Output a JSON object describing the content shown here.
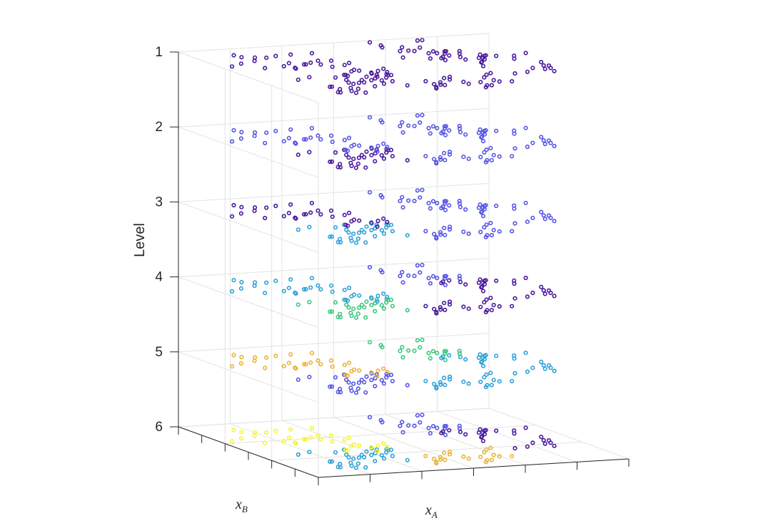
{
  "chart_data": {
    "type": "scatter",
    "view": "3d",
    "title": "",
    "xlabel": "x_A",
    "ylabel": "x_B",
    "zlabel": "Level",
    "xlabel_display": {
      "base": "x",
      "sub": "A"
    },
    "ylabel_display": {
      "base": "x",
      "sub": "B"
    },
    "level_ticks": [
      "1",
      "2",
      "3",
      "4",
      "5",
      "6"
    ],
    "x_tick_labels": [],
    "y_tick_labels": [],
    "grid": true,
    "legend": "none",
    "palette": {
      "c1": "#4a1a9c",
      "c2": "#5656e6",
      "c3": "#2fa2d9",
      "c4": "#3fc77f",
      "c5": "#e9b43a",
      "c6": "#f5f530"
    },
    "groups": [
      {
        "id": "left-pair",
        "x": [
          1.5,
          3.4
        ],
        "y": [
          7.0,
          7.4
        ]
      },
      {
        "id": "upper-left",
        "x": [
          4.4,
          15.0
        ],
        "y": [
          5.3,
          8.9
        ]
      },
      {
        "id": "lower-left",
        "x": [
          4.7,
          16.9
        ],
        "y": [
          1.2,
          4.6
        ]
      },
      {
        "id": "mid-left",
        "x": [
          11.6,
          17.3
        ],
        "y": [
          3.8,
          5.2
        ]
      },
      {
        "id": "mid-right",
        "x": [
          17.1,
          28.3
        ],
        "y": [
          0.9,
          3.3
        ]
      },
      {
        "id": "upper-right",
        "x": [
          23.6,
          31.5
        ],
        "y": [
          5.8,
          9.8
        ]
      },
      {
        "id": "far-right",
        "x": [
          27.7,
          37.9
        ],
        "y": [
          2.6,
          6.7
        ]
      }
    ],
    "levels": [
      {
        "level": 1,
        "colors": {
          "left-pair": "c1",
          "upper-left": "c1",
          "lower-left": "c1",
          "mid-left": "c1",
          "mid-right": "c1",
          "upper-right": "c1",
          "far-right": "c1"
        }
      },
      {
        "level": 2,
        "colors": {
          "left-pair": "c2",
          "upper-left": "c2",
          "lower-left": "c1",
          "mid-left": "c2",
          "mid-right": "c2",
          "upper-right": "c2",
          "far-right": "c2"
        }
      },
      {
        "level": 3,
        "colors": {
          "left-pair": "c1",
          "upper-left": "c1",
          "lower-left": "c3",
          "mid-left": "c1",
          "mid-right": "c2",
          "upper-right": "c2",
          "far-right": "c2"
        }
      },
      {
        "level": 4,
        "colors": {
          "left-pair": "c3",
          "upper-left": "c3",
          "lower-left": "c4",
          "mid-left": "c3",
          "mid-right": "c1",
          "upper-right": "c2",
          "far-right": "c1"
        }
      },
      {
        "level": 5,
        "colors": {
          "left-pair": "c5",
          "upper-left": "c5",
          "lower-left": "c2",
          "mid-left": "c5",
          "mid-right": "c3",
          "upper-right": "c4",
          "far-right": "c3"
        }
      },
      {
        "level": 6,
        "colors": {
          "left-pair": "c6",
          "upper-left": "c6",
          "lower-left": "c3",
          "mid-left": "c6",
          "mid-right": "c5",
          "upper-right": "c2",
          "far-right": "c1"
        }
      }
    ]
  }
}
